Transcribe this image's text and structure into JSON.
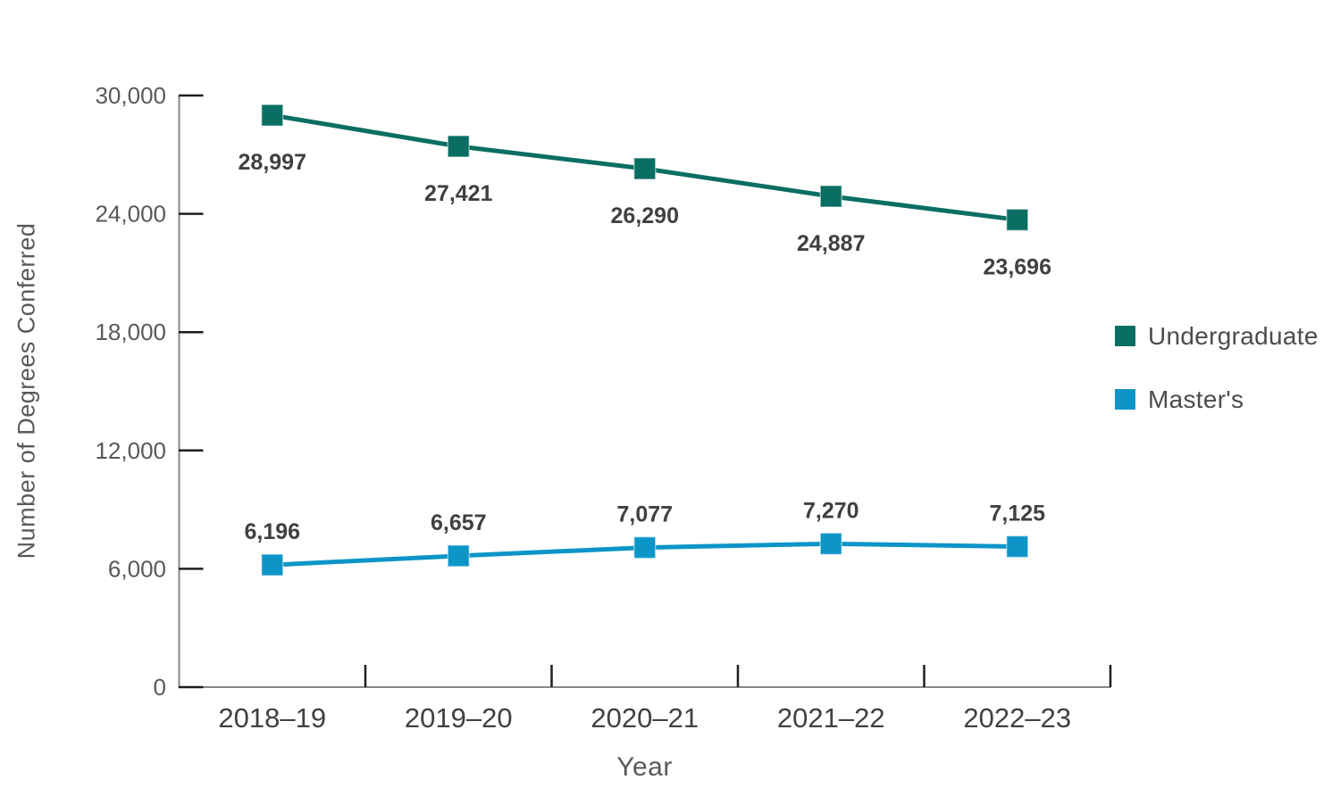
{
  "chart_data": {
    "type": "line",
    "title": "",
    "xlabel": "Year",
    "ylabel": "Number of Degrees Conferred",
    "categories": [
      "2018–19",
      "2019–20",
      "2020–21",
      "2021–22",
      "2022–23"
    ],
    "series": [
      {
        "name": "Undergraduate",
        "color": "#0B6E63",
        "values": [
          28997,
          27421,
          26290,
          24887,
          23696
        ],
        "point_labels": [
          "28,997",
          "27,421",
          "26,290",
          "24,887",
          "23,696"
        ],
        "label_position": "below"
      },
      {
        "name": "Master's",
        "color": "#0D95C8",
        "values": [
          6196,
          6657,
          7077,
          7270,
          7125
        ],
        "point_labels": [
          "6,196",
          "6,657",
          "7,077",
          "7,270",
          "7,125"
        ],
        "label_position": "above"
      }
    ],
    "ylim": [
      0,
      30000
    ],
    "yticks": [
      0,
      6000,
      12000,
      18000,
      24000,
      30000
    ],
    "ytick_labels": [
      "0",
      "6,000",
      "12,000",
      "18,000",
      "24,000",
      "30,000"
    ],
    "grid": false,
    "legend_position": "right",
    "colors": {
      "axis_line": "#85878A",
      "tick_mark": "#1E1E1E",
      "ytick_label": "#58595B",
      "xtick_label": "#414042",
      "data_label": "#3F4042"
    }
  }
}
